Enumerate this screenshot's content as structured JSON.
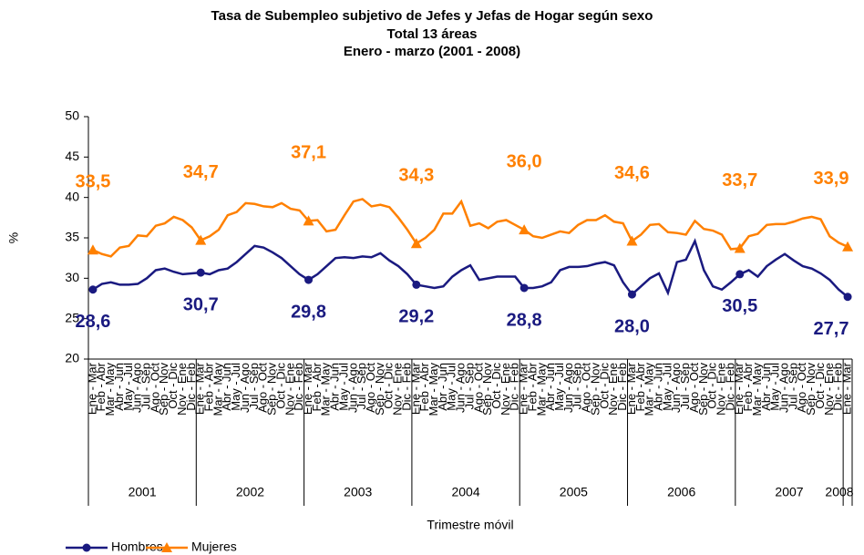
{
  "chart_data": {
    "type": "line",
    "title": "Tasa de Subempleo subjetivo de Jefes y Jefas de Hogar según sexo",
    "subtitle": "Total 13 áreas",
    "period": "Enero - marzo (2001 - 2008)",
    "x_label": "Trimestre móvil",
    "y_label": "%",
    "categories": [
      "Ene - Mar",
      "Feb - Abr",
      "Mar - May",
      "Abr - Jun",
      "May - Jul",
      "Jun - Ago",
      "Jul - Sep",
      "Ago - Oct",
      "Sep - Nov",
      "Oct - Dic",
      "Nov - Ene",
      "Dic - Feb",
      "Ene - Mar",
      "Feb - Abr",
      "Mar - May",
      "Abr - Jun",
      "May - Jul",
      "Jun - Ago",
      "Jul - Sep",
      "Ago - Oct",
      "Sep - Nov",
      "Oct - Dic",
      "Nov - Ene",
      "Dic - Feb",
      "Ene - Mar",
      "Feb - Abr",
      "Mar - May",
      "Abr - Jun",
      "May - Jul",
      "Jun - Ago",
      "Jul - Sep",
      "Ago - Oct",
      "Sep - Nov",
      "Oct - Dic",
      "Nov - Ene",
      "Dic - Feb",
      "Ene - Mar",
      "Feb - Abr",
      "Mar - May",
      "Abr - Jun",
      "May - Jul",
      "Jun - Ago",
      "Jul - Sep",
      "Ago - Oct",
      "Sep - Nov",
      "Oct - Dic",
      "Nov - Ene",
      "Dic - Feb",
      "Ene - Mar",
      "Feb - Abr",
      "Mar - May",
      "Abr - Jun",
      "May - Jul",
      "Jun - Ago",
      "Jul - Sep",
      "Ago - Oct",
      "Sep - Nov",
      "Oct - Dic",
      "Nov - Ene",
      "Dic - Feb",
      "Ene - Mar",
      "Feb - Abr",
      "Mar - May",
      "Abr - Jun",
      "May - Jul",
      "Jun - Ago",
      "Jul - Sep",
      "Ago - Oct",
      "Sep - Nov",
      "Oct - Dic",
      "Nov - Ene",
      "Dic - Feb",
      "Ene - Mar",
      "Feb - Abr",
      "Mar - May",
      "Abr - Jun",
      "May - Jul",
      "Jun - Ago",
      "Jul - Sep",
      "Ago - Oct",
      "Sep - Nov",
      "Oct - Dic",
      "Nov - Ene",
      "Dic - Feb",
      "Ene - Mar"
    ],
    "years": [
      "2001",
      null,
      null,
      null,
      null,
      null,
      null,
      null,
      null,
      null,
      null,
      null,
      "2002",
      null,
      null,
      null,
      null,
      null,
      null,
      null,
      null,
      null,
      null,
      null,
      "2003",
      null,
      null,
      null,
      null,
      null,
      null,
      null,
      null,
      null,
      null,
      null,
      "2004",
      null,
      null,
      null,
      null,
      null,
      null,
      null,
      null,
      null,
      null,
      null,
      "2005",
      null,
      null,
      null,
      null,
      null,
      null,
      null,
      null,
      null,
      null,
      null,
      "2006",
      null,
      null,
      null,
      null,
      null,
      null,
      null,
      null,
      null,
      null,
      null,
      "2007",
      null,
      null,
      null,
      null,
      null,
      null,
      null,
      null,
      null,
      null,
      null,
      "2008"
    ],
    "series": [
      {
        "name": "Hombres",
        "color": "#1a1a80",
        "marker": "circle",
        "values": [
          28.6,
          29.3,
          29.5,
          29.2,
          29.2,
          29.3,
          30,
          31,
          31.2,
          30.8,
          30.5,
          30.6,
          30.7,
          30.5,
          31,
          31.2,
          32,
          33,
          34,
          33.8,
          33.2,
          32.5,
          31.5,
          30.5,
          29.8,
          30.5,
          31.5,
          32.5,
          32.6,
          32.5,
          32.7,
          32.6,
          33.1,
          32.2,
          31.5,
          30.5,
          29.2,
          29,
          28.8,
          29,
          30.2,
          31,
          31.6,
          29.8,
          30,
          30.2,
          30.2,
          30.2,
          28.8,
          28.8,
          29,
          29.5,
          31,
          31.4,
          31.4,
          31.5,
          31.8,
          32,
          31.6,
          29.5,
          28,
          29,
          30,
          30.6,
          28.2,
          32,
          32.3,
          34.6,
          31,
          29,
          28.6,
          29.5,
          30.5,
          31,
          30.2,
          31.5,
          32.3,
          33,
          32.2,
          31.5,
          31.2,
          30.6,
          29.8,
          28.6,
          27.7
        ],
        "value_labels": [
          "28,6",
          null,
          null,
          null,
          null,
          null,
          null,
          null,
          null,
          null,
          null,
          null,
          "30,7",
          null,
          null,
          null,
          null,
          null,
          null,
          null,
          null,
          null,
          null,
          null,
          "29,8",
          null,
          null,
          null,
          null,
          null,
          null,
          null,
          null,
          null,
          null,
          null,
          "29,2",
          null,
          null,
          null,
          null,
          null,
          null,
          null,
          null,
          null,
          null,
          null,
          "28,8",
          null,
          null,
          null,
          null,
          null,
          null,
          null,
          null,
          null,
          null,
          null,
          "28,0",
          null,
          null,
          null,
          null,
          null,
          null,
          null,
          null,
          null,
          null,
          null,
          "30,5",
          null,
          null,
          null,
          null,
          null,
          null,
          null,
          null,
          null,
          null,
          null,
          "27,7"
        ]
      },
      {
        "name": "Mujeres",
        "color": "#ff8000",
        "marker": "triangle",
        "values": [
          33.5,
          33,
          32.7,
          33.8,
          34,
          35.3,
          35.2,
          36.5,
          36.8,
          37.6,
          37.2,
          36.3,
          34.7,
          35.2,
          36,
          37.8,
          38.2,
          39.3,
          39.2,
          38.9,
          38.8,
          39.3,
          38.6,
          38.4,
          37.1,
          37.2,
          35.8,
          36,
          37.8,
          39.5,
          39.8,
          38.9,
          39.1,
          38.8,
          37.5,
          36,
          34.3,
          35,
          36,
          38,
          38,
          39.5,
          36.5,
          36.8,
          36.2,
          37,
          37.2,
          36.6,
          36,
          35.2,
          35,
          35.4,
          35.8,
          35.6,
          36.6,
          37.2,
          37.2,
          37.8,
          37,
          36.8,
          34.6,
          35.4,
          36.6,
          36.7,
          35.7,
          35.6,
          35.4,
          37.1,
          36.1,
          35.9,
          35.4,
          33.6,
          33.7,
          35.2,
          35.5,
          36.6,
          36.7,
          36.7,
          37,
          37.4,
          37.6,
          37.3,
          35.2,
          34.4,
          33.9
        ],
        "value_labels": [
          "33,5",
          null,
          null,
          null,
          null,
          null,
          null,
          null,
          null,
          null,
          null,
          null,
          "34,7",
          null,
          null,
          null,
          null,
          null,
          null,
          null,
          null,
          null,
          null,
          null,
          "37,1",
          null,
          null,
          null,
          null,
          null,
          null,
          null,
          null,
          null,
          null,
          null,
          "34,3",
          null,
          null,
          null,
          null,
          null,
          null,
          null,
          null,
          null,
          null,
          null,
          "36,0",
          null,
          null,
          null,
          null,
          null,
          null,
          null,
          null,
          null,
          null,
          null,
          "34,6",
          null,
          null,
          null,
          null,
          null,
          null,
          null,
          null,
          null,
          null,
          null,
          "33,7",
          null,
          null,
          null,
          null,
          null,
          null,
          null,
          null,
          null,
          null,
          null,
          "33,9"
        ]
      }
    ],
    "ylim": [
      20,
      50
    ],
    "yticks": [
      20,
      25,
      30,
      35,
      40,
      45,
      50
    ],
    "grid": false,
    "legend": "bottom-left"
  }
}
